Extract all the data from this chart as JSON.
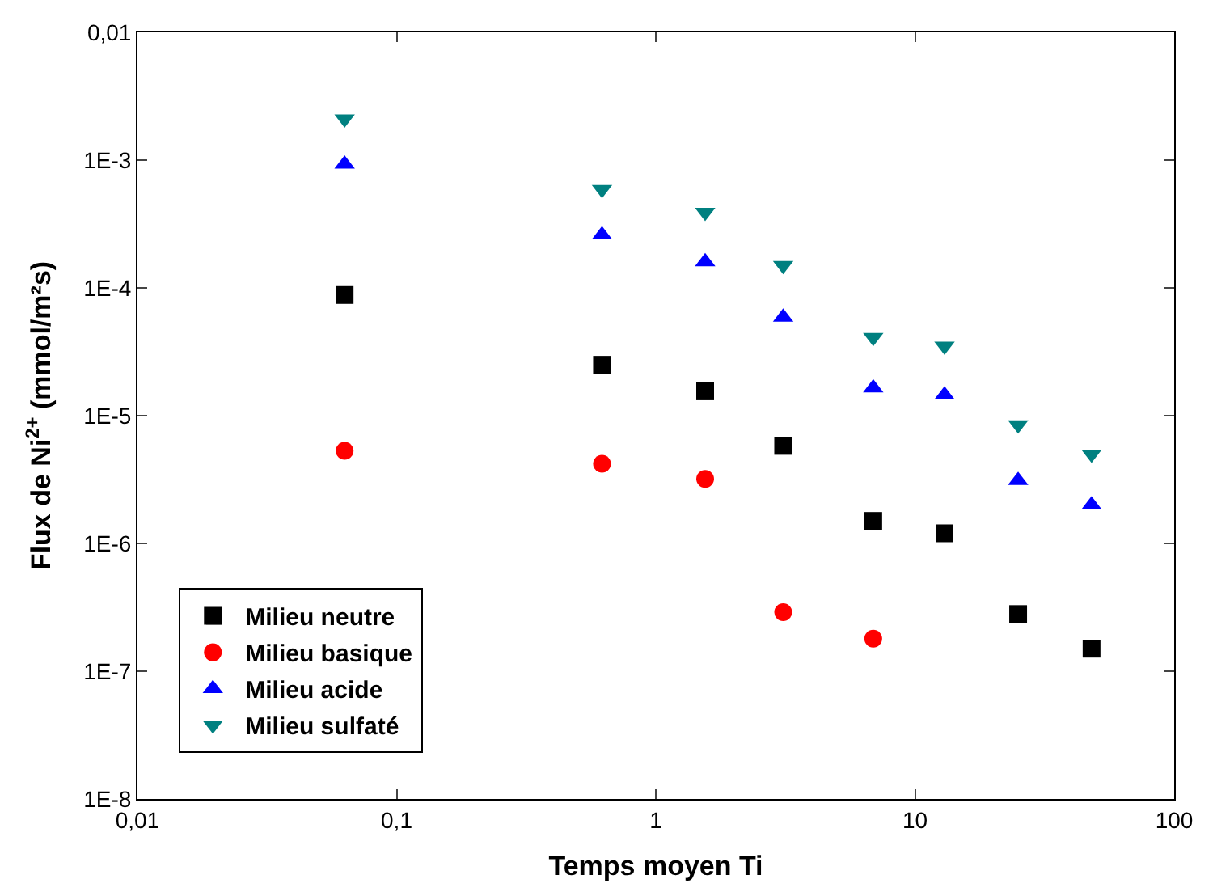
{
  "chart_data": {
    "type": "scatter",
    "xlabel": "Temps moyen Ti",
    "ylabel": "Flux de Ni$^{2+}$ (mmol/m²s)",
    "log": "xy",
    "legend": "bottom left",
    "xlim": [
      0.01,
      100
    ],
    "xticks": [
      {
        "value": 0.01,
        "label": "0,01"
      },
      {
        "value": 0.1,
        "label": "0,1"
      },
      1,
      10,
      100
    ],
    "ylim": [
      1e-08,
      0.01
    ],
    "yticks": [
      {
        "value": 1e-08,
        "label": "1E-8"
      },
      {
        "value": 1e-07,
        "label": "1E-7"
      },
      {
        "value": 1e-06,
        "label": "1E-6"
      },
      {
        "value": 1e-05,
        "label": "1E-5"
      },
      {
        "value": 0.0001,
        "label": "1E-4"
      },
      {
        "value": 0.001,
        "label": "1E-3"
      },
      {
        "value": 0.01,
        "label": "0,01"
      }
    ],
    "x": [
      0.063,
      0.62,
      1.55,
      3.1,
      6.9,
      13,
      25,
      48
    ],
    "series": [
      {
        "name": "Milieu neutre",
        "color": "#000000",
        "marker": "square",
        "values": [
          8.8e-05,
          2.5e-05,
          1.55e-05,
          5.8e-06,
          1.5e-06,
          1.2e-06,
          2.8e-07,
          1.5e-07
        ]
      },
      {
        "name": "Milieu basique",
        "color": "#ff0000",
        "marker": "circle",
        "values": [
          5.3e-06,
          4.2e-06,
          3.2e-06,
          2.9e-07,
          1.8e-07,
          null,
          null,
          null
        ]
      },
      {
        "name": "Milieu acide",
        "color": "#0000ff",
        "marker": "triangle",
        "values": [
          0.00093,
          0.00026,
          0.00016,
          5.9e-05,
          1.65e-05,
          1.45e-05,
          3.1e-06,
          2e-06
        ]
      },
      {
        "name": "Milieu sulfaté",
        "color": "#008080",
        "marker": "triangle-down",
        "values": [
          0.0021,
          0.00059,
          0.00039,
          0.00015,
          4.1e-05,
          3.5e-05,
          8.5e-06,
          5e-06
        ]
      }
    ]
  }
}
